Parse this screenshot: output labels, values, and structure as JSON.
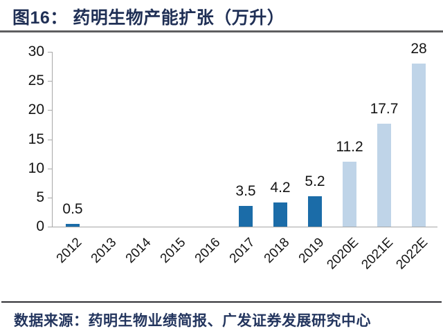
{
  "header": {
    "title": "图16：  药明生物产能扩张（万升）"
  },
  "footer": {
    "source": "数据来源：药明生物业绩简报、广发证券发展研究中心"
  },
  "colors": {
    "title_navy": "#1f2f55",
    "source_navy": "#23355e",
    "bar_dark": "#1b6ca8",
    "bar_light": "#bfd4e8",
    "axis_gray": "#a6a6a6",
    "text_black": "#141414"
  },
  "chart_data": {
    "type": "bar",
    "title": "药明生物产能扩张（万升）",
    "xlabel": "",
    "ylabel": "",
    "categories": [
      "2012",
      "2013",
      "2014",
      "2015",
      "2016",
      "2017",
      "2018",
      "2019",
      "2020E",
      "2021E",
      "2022E"
    ],
    "values": [
      0.5,
      null,
      null,
      null,
      null,
      3.5,
      4.2,
      5.2,
      11.2,
      17.7,
      28
    ],
    "value_labels": [
      "0.5",
      "",
      "",
      "",
      "",
      "3.5",
      "4.2",
      "5.2",
      "11.2",
      "17.7",
      "28"
    ],
    "bar_styles": [
      "dark",
      "dark",
      "dark",
      "dark",
      "dark",
      "dark",
      "dark",
      "dark",
      "light",
      "light",
      "light"
    ],
    "ylim": [
      0,
      30
    ],
    "yticks": [
      0,
      5,
      10,
      15,
      20,
      25,
      30
    ],
    "grid": false,
    "legend": null,
    "x_tick_rotation_deg": 45
  }
}
